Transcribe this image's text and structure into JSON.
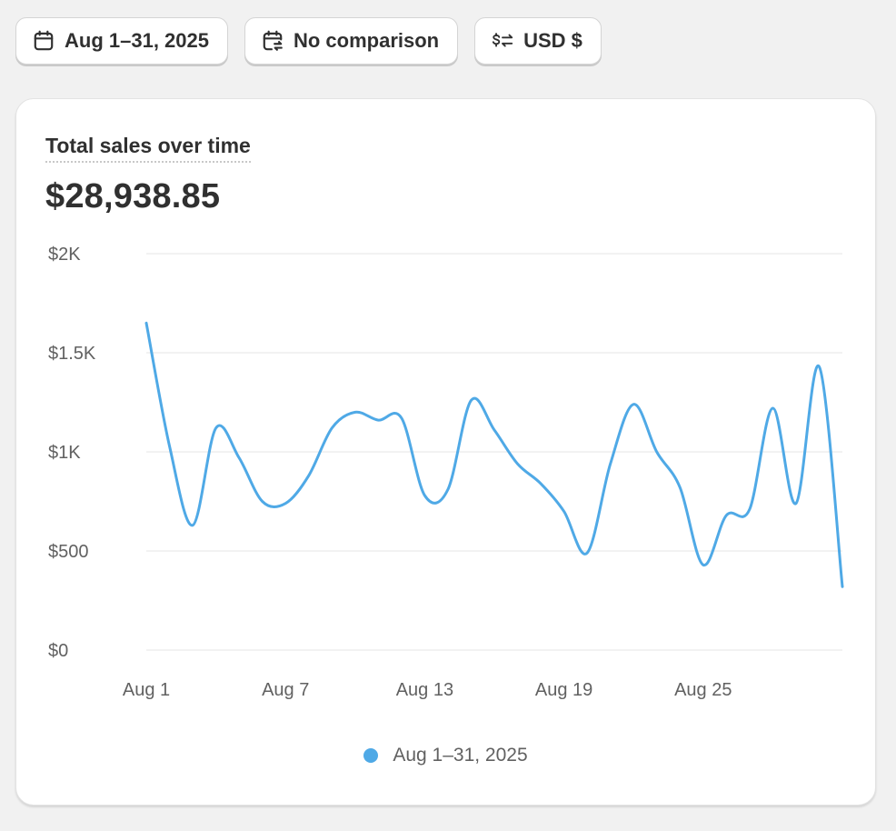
{
  "filters": {
    "date_range": {
      "label": "Aug 1–31, 2025",
      "icon": "calendar-icon"
    },
    "comparison": {
      "label": "No comparison",
      "icon": "calendar-compare-icon"
    },
    "currency": {
      "label": "USD $",
      "icon": "currency-exchange-icon"
    }
  },
  "card": {
    "title": "Total sales over time",
    "total": "$28,938.85"
  },
  "legend": {
    "label": "Aug 1–31, 2025"
  },
  "colors": {
    "series": "#4fa9e6",
    "grid": "#e6e6e6",
    "background": "#f1f1f1"
  },
  "chart_data": {
    "type": "line",
    "title": "Total sales over time",
    "xlabel": "",
    "ylabel": "",
    "x": [
      "Aug 1",
      "Aug 2",
      "Aug 3",
      "Aug 4",
      "Aug 5",
      "Aug 6",
      "Aug 7",
      "Aug 8",
      "Aug 9",
      "Aug 10",
      "Aug 11",
      "Aug 12",
      "Aug 13",
      "Aug 14",
      "Aug 15",
      "Aug 16",
      "Aug 17",
      "Aug 18",
      "Aug 19",
      "Aug 20",
      "Aug 21",
      "Aug 22",
      "Aug 23",
      "Aug 24",
      "Aug 25",
      "Aug 26",
      "Aug 27",
      "Aug 28",
      "Aug 29",
      "Aug 30",
      "Aug 31"
    ],
    "x_tick_labels": [
      "Aug 1",
      "Aug 7",
      "Aug 13",
      "Aug 19",
      "Aug 25"
    ],
    "x_tick_positions": [
      0,
      6,
      12,
      18,
      24
    ],
    "y_ticks": [
      0,
      500,
      1000,
      1500,
      2000
    ],
    "y_tick_labels": [
      "$0",
      "$500",
      "$1K",
      "$1.5K",
      "$2K"
    ],
    "ylim": [
      0,
      2000
    ],
    "grid": true,
    "legend_position": "bottom-center",
    "series": [
      {
        "name": "Aug 1–31, 2025",
        "values": [
          1650,
          1030,
          630,
          1120,
          970,
          750,
          740,
          880,
          1120,
          1200,
          1160,
          1170,
          780,
          810,
          1260,
          1110,
          940,
          840,
          700,
          490,
          940,
          1240,
          1000,
          820,
          430,
          680,
          710,
          1220,
          740,
          1430,
          320
        ]
      }
    ]
  }
}
